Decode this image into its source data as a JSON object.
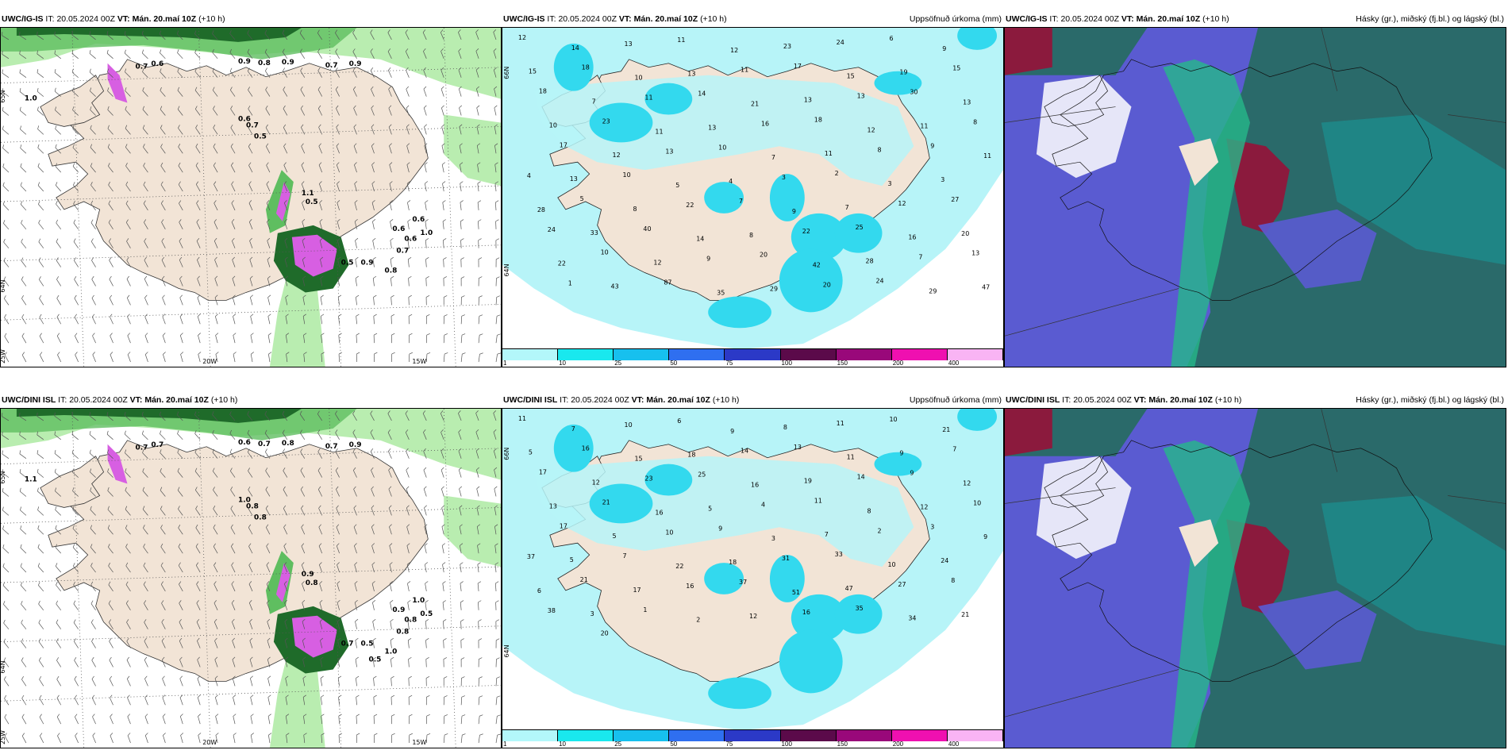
{
  "rows": [
    {
      "panels": [
        {
          "id": "r1p1",
          "kind": "wind",
          "model": "UWC/IG-IS",
          "it_label": "IT:",
          "it": "20.05.2024 00Z",
          "vt_label": "VT:",
          "vt": "Mán. 20.maí 10Z",
          "lead": "(+10 h)",
          "title_right": "",
          "lat_labels": [
            "65N",
            "64N",
            "25W"
          ],
          "lon_labels": [
            "20W",
            "15W"
          ],
          "values": [
            "0.7",
            "0.6",
            "0.9",
            "0.8",
            "0.9",
            "0.7",
            "0.9",
            "1.0",
            "0.6",
            "0.7",
            "0.5",
            "1.1",
            "0.5",
            "0.6",
            "0.6",
            "0.6",
            "0.7",
            "1.0",
            "0.9",
            "0.8",
            "0.5"
          ]
        },
        {
          "id": "r1p2",
          "kind": "precip",
          "model": "UWC/IG-IS",
          "it_label": "IT:",
          "it": "20.05.2024 00Z",
          "vt_label": "VT:",
          "vt": "Mán. 20.maí 10Z",
          "lead": "(+10 h)",
          "title_right": "Uppsöfnuð úrkoma (mm)",
          "lat_labels": [
            "66N",
            "64N"
          ],
          "lon_labels": [],
          "values": [
            "12",
            "14",
            "13",
            "11",
            "12",
            "23",
            "24",
            "6",
            "9",
            "15",
            "18",
            "10",
            "13",
            "11",
            "17",
            "15",
            "19",
            "15",
            "18",
            "7",
            "11",
            "14",
            "21",
            "13",
            "13",
            "30",
            "13",
            "10",
            "23",
            "11",
            "13",
            "16",
            "18",
            "12",
            "11",
            "8",
            "17",
            "12",
            "13",
            "10",
            "7",
            "11",
            "8",
            "9",
            "11",
            "13",
            "10",
            "5",
            "4",
            "3",
            "2",
            "3",
            "3",
            "4",
            "5",
            "8",
            "22",
            "7",
            "9",
            "7",
            "12",
            "27",
            "28",
            "33",
            "40",
            "14",
            "8",
            "22",
            "25",
            "16",
            "20",
            "24",
            "10",
            "12",
            "9",
            "20",
            "42",
            "28",
            "7",
            "13",
            "22",
            "43",
            "87",
            "35",
            "29",
            "20",
            "24",
            "29",
            "47",
            "1"
          ]
        },
        {
          "id": "r1p3",
          "kind": "cloud",
          "model": "UWC/IG-IS",
          "it_label": "IT:",
          "it": "20.05.2024 00Z",
          "vt_label": "VT:",
          "vt": "Mán. 20.maí 10Z",
          "lead": "(+10 h)",
          "title_right": "Hásky (gr.), miðský (fj.bl.) og lágský (bl.)",
          "lat_labels": [],
          "lon_labels": [],
          "values": []
        }
      ]
    },
    {
      "panels": [
        {
          "id": "r2p1",
          "kind": "wind",
          "model": "UWC/DINI ISL",
          "it_label": "IT:",
          "it": "20.05.2024 00Z",
          "vt_label": "VT:",
          "vt": "Mán. 20.maí 10Z",
          "lead": "(+10 h)",
          "title_right": "",
          "lat_labels": [
            "65N",
            "64N",
            "25W"
          ],
          "lon_labels": [
            "20W",
            "15W"
          ],
          "values": [
            "0.7",
            "0.7",
            "0.6",
            "0.7",
            "0.8",
            "0.7",
            "0.9",
            "1.1",
            "1.0",
            "0.8",
            "0.8",
            "0.9",
            "0.8",
            "0.9",
            "1.0",
            "0.8",
            "0.8",
            "0.5",
            "0.5",
            "1.0",
            "0.7",
            "0.5"
          ]
        },
        {
          "id": "r2p2",
          "kind": "precip",
          "model": "UWC/DINI ISL",
          "it_label": "IT:",
          "it": "20.05.2024 00Z",
          "vt_label": "VT:",
          "vt": "Mán. 20.maí 10Z",
          "lead": "(+10 h)",
          "title_right": "Uppsöfnuð úrkoma (mm)",
          "lat_labels": [
            "66N",
            "64N"
          ],
          "lon_labels": [],
          "values": [
            "11",
            "7",
            "10",
            "6",
            "9",
            "8",
            "11",
            "10",
            "21",
            "5",
            "16",
            "15",
            "18",
            "14",
            "13",
            "11",
            "9",
            "7",
            "17",
            "12",
            "23",
            "25",
            "16",
            "19",
            "14",
            "9",
            "12",
            "13",
            "21",
            "16",
            "5",
            "4",
            "11",
            "8",
            "12",
            "10",
            "17",
            "5",
            "10",
            "9",
            "3",
            "7",
            "2",
            "3",
            "9",
            "5",
            "7",
            "22",
            "18",
            "31",
            "33",
            "10",
            "24",
            "37",
            "21",
            "17",
            "16",
            "37",
            "51",
            "47",
            "27",
            "8",
            "6",
            "3",
            "1",
            "2",
            "12",
            "16",
            "35",
            "34",
            "21",
            "38",
            "20"
          ]
        },
        {
          "id": "r2p3",
          "kind": "cloud",
          "model": "UWC/DINI ISL",
          "it_label": "IT:",
          "it": "20.05.2024 00Z",
          "vt_label": "VT:",
          "vt": "Mán. 20.maí 10Z",
          "lead": "(+10 h)",
          "title_right": "Hásky (gr.), miðský (fj.bl.) og lágský (bl.)",
          "lat_labels": [],
          "lon_labels": [],
          "values": []
        }
      ]
    }
  ],
  "colorbar": {
    "ticks": [
      "1",
      "10",
      "25",
      "50",
      "75",
      "100",
      "150",
      "200",
      "400"
    ],
    "colors": [
      "#b3f7fa",
      "#19e8ee",
      "#17c0ee",
      "#2f6ff0",
      "#2b39c7",
      "#5b0a4a",
      "#99087a",
      "#ef10b0",
      "#f9b4f4"
    ]
  },
  "palette": {
    "land": "#f2e4d6",
    "sea_precip": "#b7f4f8",
    "precip_mid": "#33d9ee",
    "green_light": "#b9edb0",
    "green_mid": "#5fbe60",
    "green_dark": "#1f6b2a",
    "magenta": "#d75fe2",
    "cloud_high": "#5a5bd1",
    "cloud_mid": "#2a6a6a",
    "cloud_low_dark": "#8b1a3d",
    "cloud_teal": "#1d8c8c",
    "cloud_green": "#25b88a"
  }
}
